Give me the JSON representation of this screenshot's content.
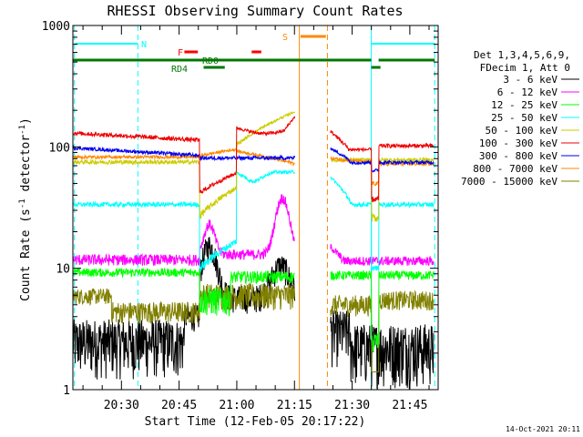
{
  "chart_data": {
    "type": "line",
    "title": "RHESSI Observing Summary Count Rates",
    "xlabel": "Start Time (12-Feb-05 20:17:22)",
    "ylabel_main": "Count Rate (s",
    "ylabel_sup1": "-1",
    "ylabel_mid": " detector",
    "ylabel_sup2": "-1",
    "ylabel_end": ")",
    "yscale": "log",
    "ylim": [
      1,
      1000
    ],
    "xlim_minutes": [
      0,
      95
    ],
    "x_ticks": [
      {
        "m": 12.63,
        "label": "20:30"
      },
      {
        "m": 27.63,
        "label": "20:45"
      },
      {
        "m": 42.63,
        "label": "21:00"
      },
      {
        "m": 57.63,
        "label": "21:15"
      },
      {
        "m": 72.63,
        "label": "21:30"
      },
      {
        "m": 87.63,
        "label": "21:45"
      }
    ],
    "y_ticks": [
      {
        "v": 1,
        "label": "1"
      },
      {
        "v": 10,
        "label": "10"
      },
      {
        "v": 100,
        "label": "100"
      },
      {
        "v": 1000,
        "label": "1000"
      }
    ],
    "legend_header": [
      "Det 1,3,4,5,6,9,",
      "FDecim 1, Att 0"
    ],
    "series": [
      {
        "name": "3 - 6 keV",
        "color": "#000000"
      },
      {
        "name": "6 - 12 keV",
        "color": "#ff00ff"
      },
      {
        "name": "12 - 25 keV",
        "color": "#00ff00"
      },
      {
        "name": "25 - 50 keV",
        "color": "#00ffff"
      },
      {
        "name": "50 - 100 keV",
        "color": "#cccc00"
      },
      {
        "name": "100 - 300 keV",
        "color": "#ee0000"
      },
      {
        "name": "300 - 800 keV",
        "color": "#0000ee"
      },
      {
        "name": "800 - 7000 keV",
        "color": "#ff8800"
      },
      {
        "name": "7000 - 15000 keV",
        "color": "#808000"
      }
    ],
    "flags": [
      {
        "label": "N",
        "color": "#00ffff"
      },
      {
        "label": "F",
        "color": "#ff0000"
      },
      {
        "label": "RD0",
        "color": "#007700"
      },
      {
        "label": "RD4",
        "color": "#007700"
      },
      {
        "label": "S",
        "color": "#ff8800"
      }
    ],
    "timestamp": "14-Oct-2021 20:11"
  }
}
